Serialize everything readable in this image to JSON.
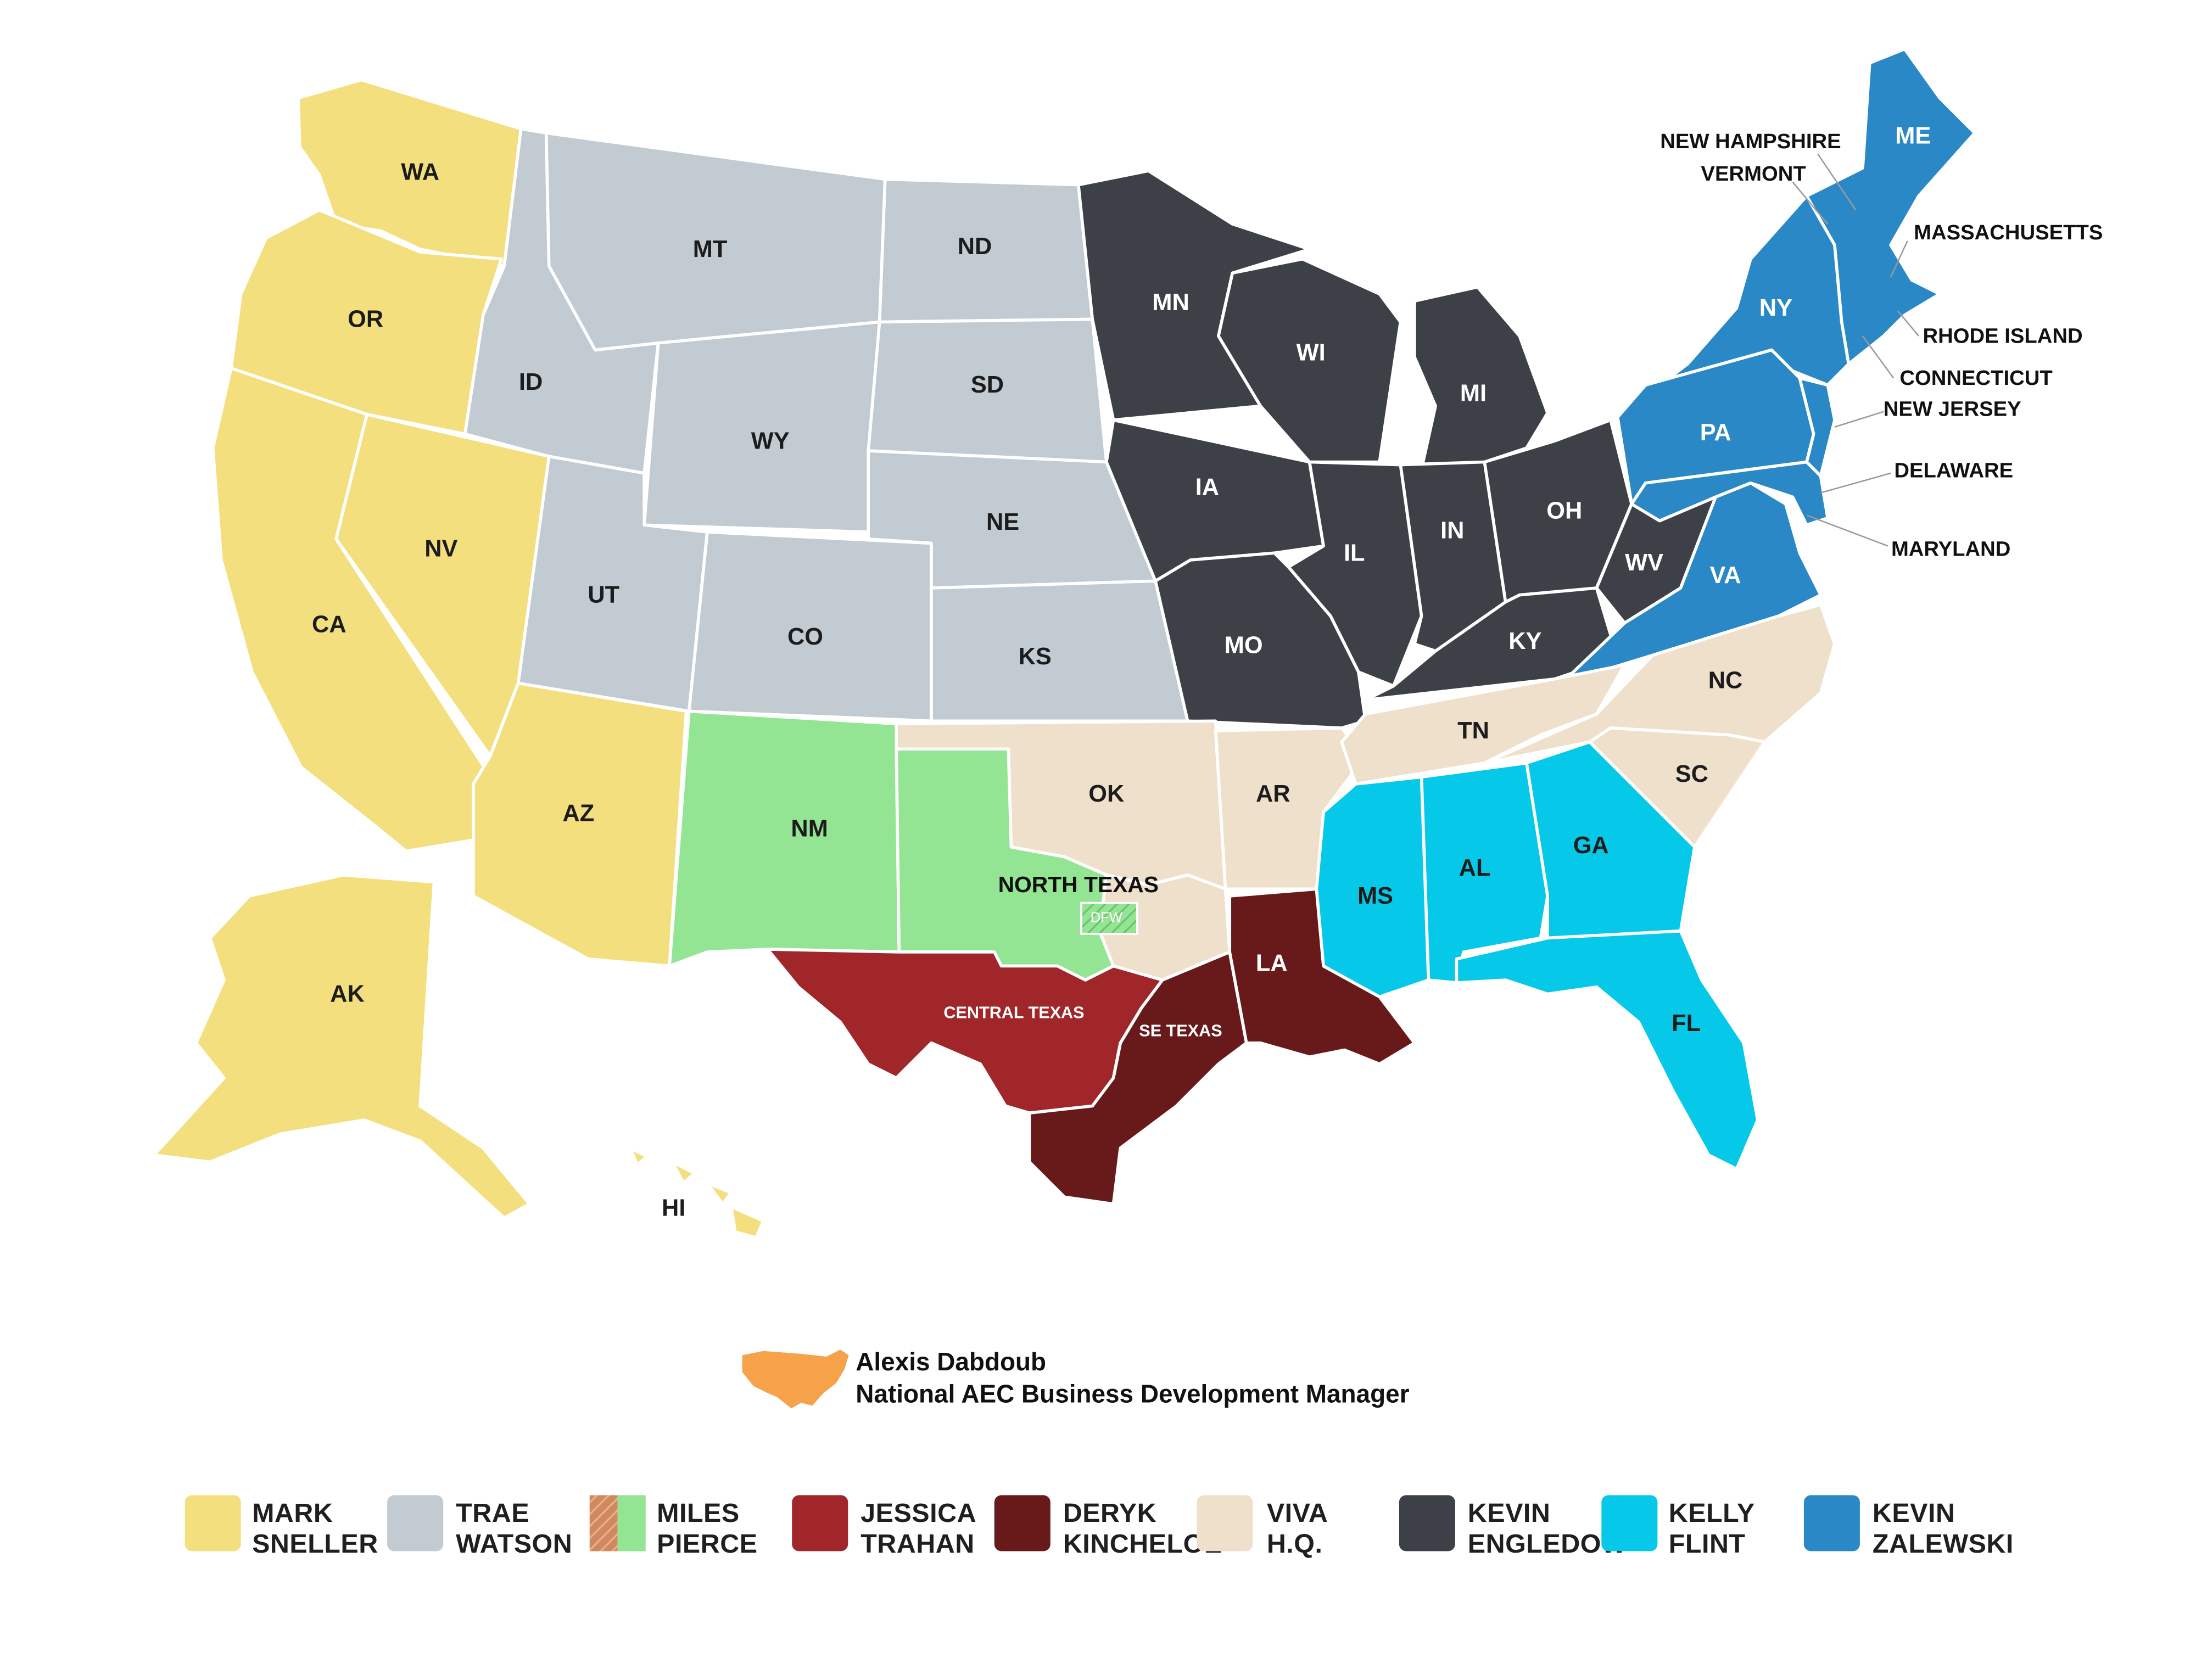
{
  "colors": {
    "mark_sneller": "#f3df7e",
    "trae_watson": "#c2cbd1",
    "miles_pierce": "#93e593",
    "miles_pierce_hatch": "#d0895f",
    "jessica_trahan": "#a0262a",
    "deryk_kincheloe": "#681a1b",
    "viva_hq": "#eee0cb",
    "kevin_engledow": "#3d4147",
    "kelly_flint": "#06c8e8",
    "kevin_zalewski": "#2a88c6",
    "national": "#f6a24a"
  },
  "states": {
    "WA": "WA",
    "OR": "OR",
    "CA": "CA",
    "NV": "NV",
    "AZ": "AZ",
    "AK": "AK",
    "HI": "HI",
    "MT": "MT",
    "ID": "ID",
    "WY": "WY",
    "UT": "UT",
    "CO": "CO",
    "ND": "ND",
    "SD": "SD",
    "NE": "NE",
    "KS": "KS",
    "NM": "NM",
    "OK": "OK",
    "AR": "AR",
    "TN": "TN",
    "NC": "NC",
    "SC": "SC",
    "MN": "MN",
    "WI": "WI",
    "MI": "MI",
    "IA": "IA",
    "IL": "IL",
    "IN": "IN",
    "OH": "OH",
    "MO": "MO",
    "KY": "KY",
    "WV": "WV",
    "MS": "MS",
    "AL": "AL",
    "GA": "GA",
    "FL": "FL",
    "LA": "LA",
    "NY": "NY",
    "PA": "PA",
    "VA": "VA",
    "ME": "ME"
  },
  "regions": {
    "north_texas": "NORTH TEXAS",
    "dfw": "DFW",
    "central_texas": "CENTRAL TEXAS",
    "se_texas": "SE TEXAS"
  },
  "callouts": {
    "new_hampshire": "NEW HAMPSHIRE",
    "vermont": "VERMONT",
    "massachusetts": "MASSACHUSETTS",
    "rhode_island": "RHODE ISLAND",
    "connecticut": "CONNECTICUT",
    "new_jersey": "NEW JERSEY",
    "delaware": "DELAWARE",
    "maryland": "MARYLAND"
  },
  "national_manager": {
    "name": "Alexis Dabdoub",
    "title": "National AEC Business Development Manager"
  },
  "legend": [
    {
      "line1": "MARK",
      "line2": "SNELLER",
      "color": "#f3df7e",
      "hatched": false
    },
    {
      "line1": "TRAE",
      "line2": "WATSON",
      "color": "#c2cbd1",
      "hatched": false
    },
    {
      "line1": "MILES",
      "line2": "PIERCE",
      "color": "#93e593",
      "hatched": true
    },
    {
      "line1": "JESSICA",
      "line2": "TRAHAN",
      "color": "#a0262a",
      "hatched": false
    },
    {
      "line1": "DERYK",
      "line2": "KINCHELOE",
      "color": "#681a1b",
      "hatched": false
    },
    {
      "line1": "VIVA",
      "line2": "H.Q.",
      "color": "#eee0cb",
      "hatched": false
    },
    {
      "line1": "KEVIN",
      "line2": "ENGLEDOW",
      "color": "#3d4147",
      "hatched": false
    },
    {
      "line1": "KELLY",
      "line2": "FLINT",
      "color": "#06c8e8",
      "hatched": false
    },
    {
      "line1": "KEVIN",
      "line2": "ZALEWSKI",
      "color": "#2a88c6",
      "hatched": false
    }
  ]
}
